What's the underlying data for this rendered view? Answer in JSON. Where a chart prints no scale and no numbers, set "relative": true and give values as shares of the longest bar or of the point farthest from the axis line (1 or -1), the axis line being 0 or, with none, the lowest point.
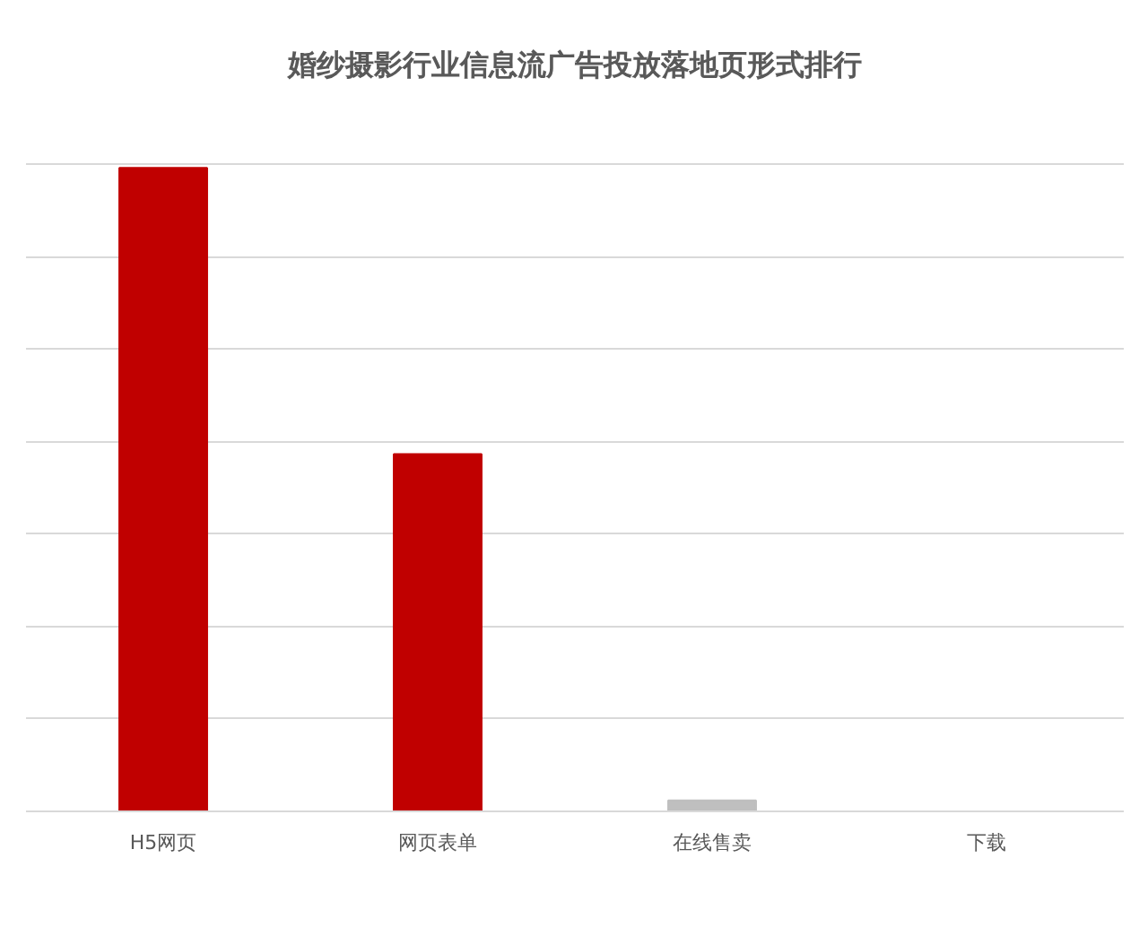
{
  "chart_data": {
    "type": "bar",
    "title": "婚纱摄影行业信息流广告投放落地页形式排行",
    "categories": [
      "H5网页",
      "网页表单",
      "在线售卖",
      "下载"
    ],
    "values": [
      1,
      0.555,
      0.017,
      0
    ],
    "colors": [
      "#c00000",
      "#c00000",
      "#bfbfbf",
      "#bfbfbf"
    ],
    "relative": true,
    "grid": "y"
  }
}
